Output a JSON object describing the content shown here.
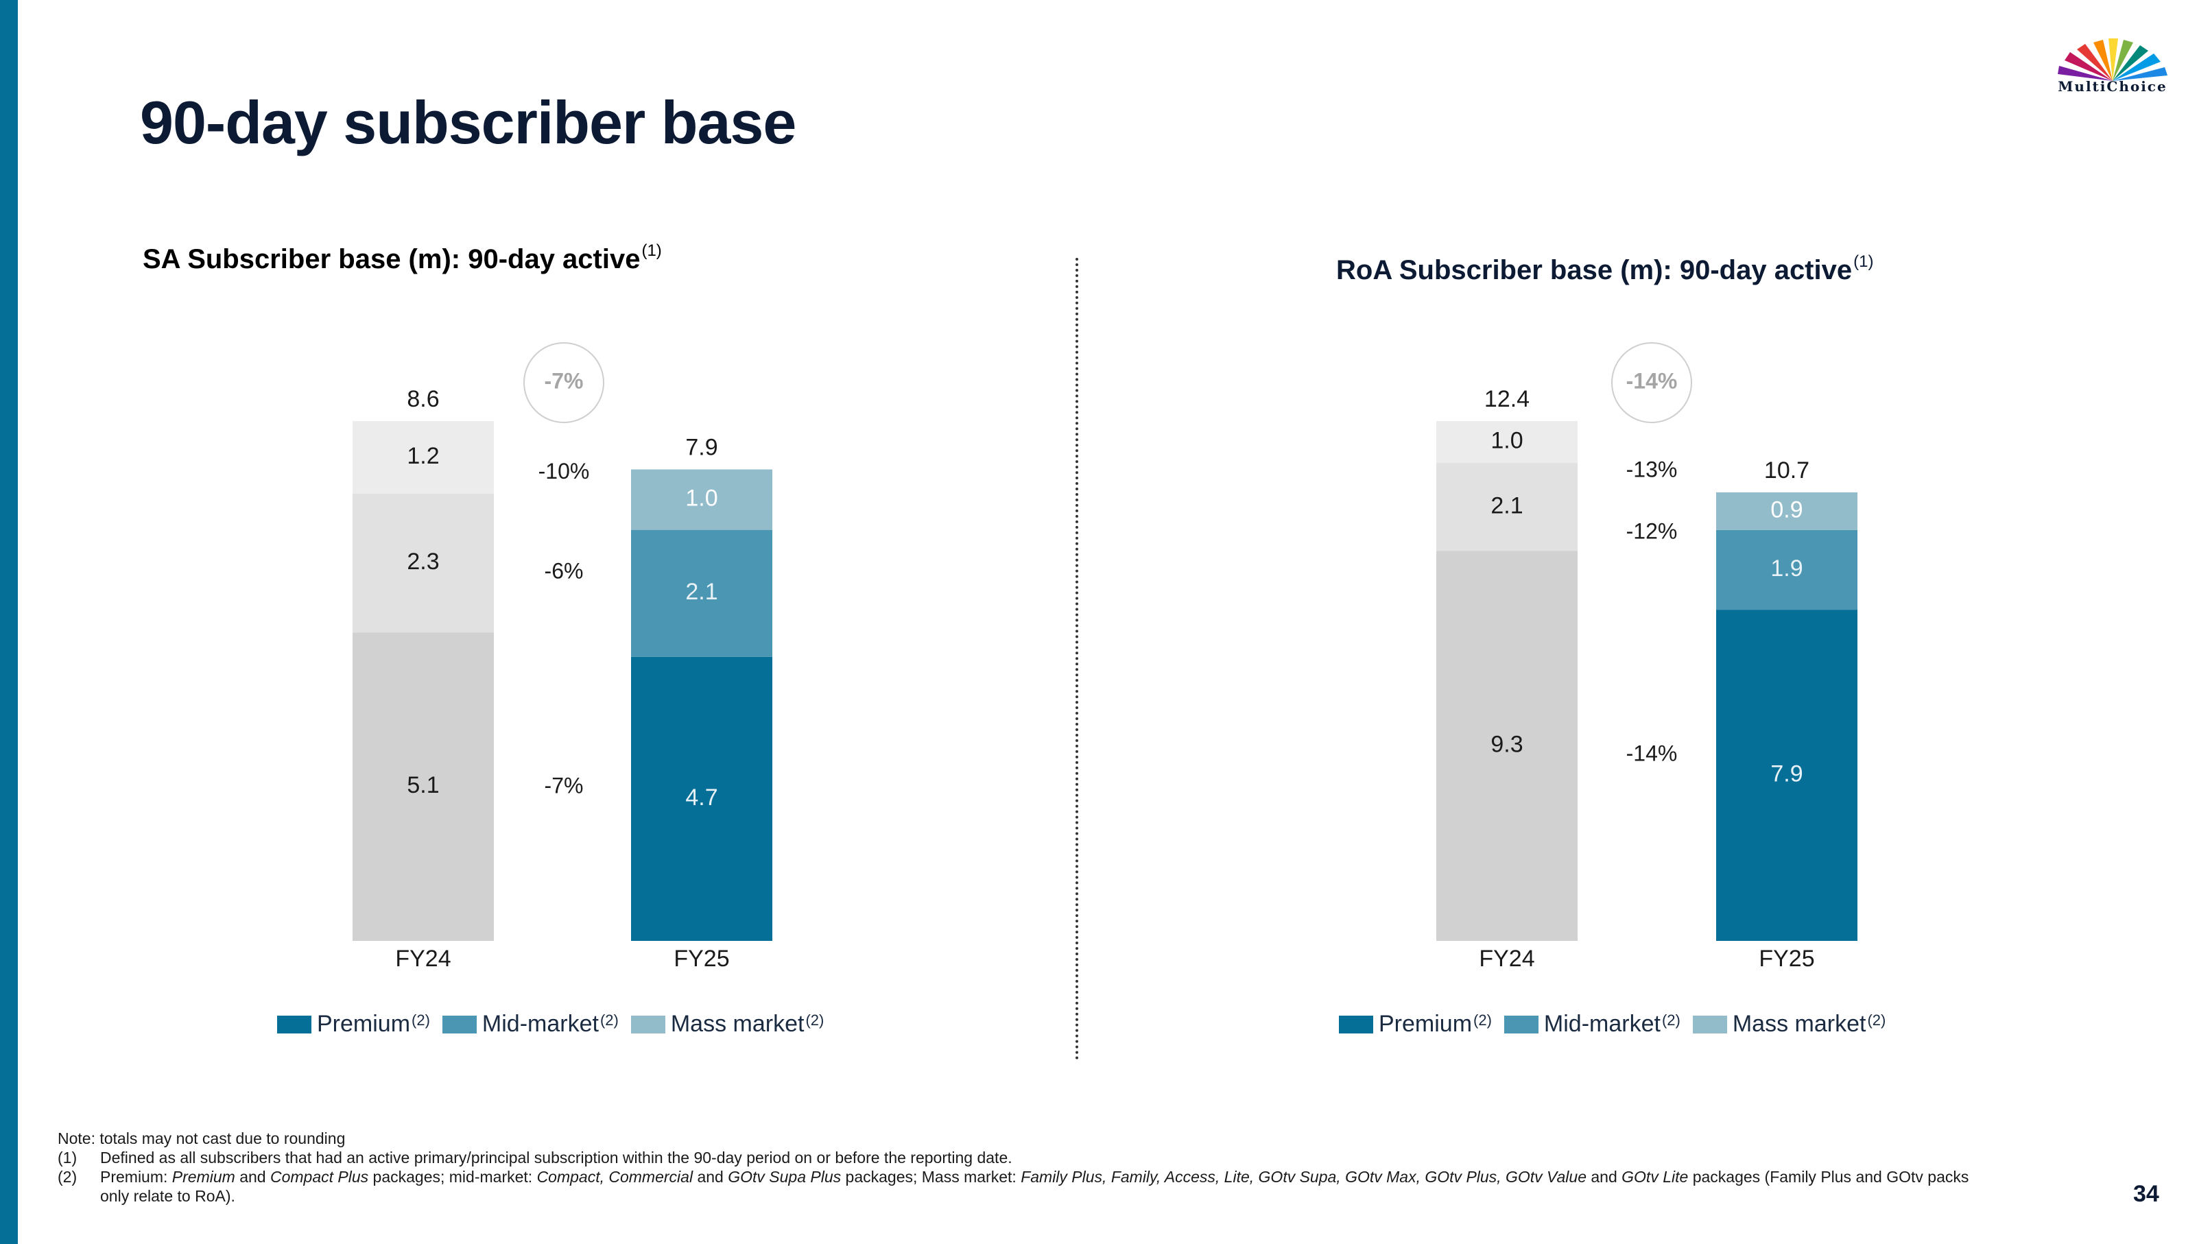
{
  "slide": {
    "title": "90-day subscriber base",
    "logo_text": "MultiChoice",
    "page_number": "34"
  },
  "colors": {
    "accent_bar": "#066f98",
    "premium": "#066f98",
    "mid_market": "#4b97b3",
    "mass_market": "#93bccb",
    "fy24_premium": "#d1d1d1",
    "fy24_mid_market": "#e1e1e1",
    "fy24_mass_market": "#ececec"
  },
  "legend": {
    "premium": "Premium",
    "mid_market": "Mid-market",
    "mass_market": "Mass market",
    "footnote_mark": "(2)"
  },
  "notes": {
    "intro": "Note: totals may not cast due to rounding",
    "items": [
      {
        "index": "(1)",
        "text": "Defined as all subscribers that had an active primary/principal subscription within the 90-day period on or before the reporting date."
      },
      {
        "index": "(2)",
        "text_parts": [
          "Premium: ",
          "Premium",
          " and ",
          "Compact Plus",
          " packages; mid-market: ",
          "Compact, Commercial",
          " and ",
          "GOtv Supa Plus",
          " packages; Mass market: ",
          "Family Plus, Family, Access, Lite, GOtv Supa, GOtv Max, GOtv Plus, GOtv Value",
          " and ",
          "GOtv Lite",
          " packages (Family Plus and GOtv packs only relate to RoA)."
        ]
      }
    ]
  },
  "chart_data": [
    {
      "type": "bar",
      "stacked": true,
      "title": "SA Subscriber base (m): 90-day active",
      "title_footnote": "(1)",
      "categories": [
        "FY24",
        "FY25"
      ],
      "series": [
        {
          "name": "Premium",
          "values": [
            5.1,
            4.7
          ],
          "labels": [
            "5.1",
            "4.7"
          ]
        },
        {
          "name": "Mid-market",
          "values": [
            2.3,
            2.1
          ],
          "labels": [
            "2.3",
            "2.1"
          ]
        },
        {
          "name": "Mass market",
          "values": [
            1.2,
            1.0
          ],
          "labels": [
            "1.2",
            "1.0"
          ]
        }
      ],
      "totals": [
        8.6,
        7.9
      ],
      "total_labels": [
        "8.6",
        "7.9"
      ],
      "segment_changes": [
        "-7%",
        "-6%",
        "-10%"
      ],
      "total_change": "-7%",
      "legend_position": "bottom",
      "ylim": [
        0,
        8.6
      ]
    },
    {
      "type": "bar",
      "stacked": true,
      "title": "RoA Subscriber base (m): 90-day active",
      "title_footnote": "(1)",
      "categories": [
        "FY24",
        "FY25"
      ],
      "series": [
        {
          "name": "Premium",
          "values": [
            9.3,
            7.9
          ],
          "labels": [
            "9.3",
            "7.9"
          ]
        },
        {
          "name": "Mid-market",
          "values": [
            2.1,
            1.9
          ],
          "labels": [
            "2.1",
            "1.9"
          ]
        },
        {
          "name": "Mass market",
          "values": [
            1.0,
            0.9
          ],
          "labels": [
            "1.0",
            "0.9"
          ]
        }
      ],
      "totals": [
        12.4,
        10.7
      ],
      "total_labels": [
        "12.4",
        "10.7"
      ],
      "segment_changes": [
        "-14%",
        "-12%",
        "-13%"
      ],
      "total_change": "-14%",
      "legend_position": "bottom",
      "ylim": [
        0,
        12.4
      ]
    }
  ]
}
